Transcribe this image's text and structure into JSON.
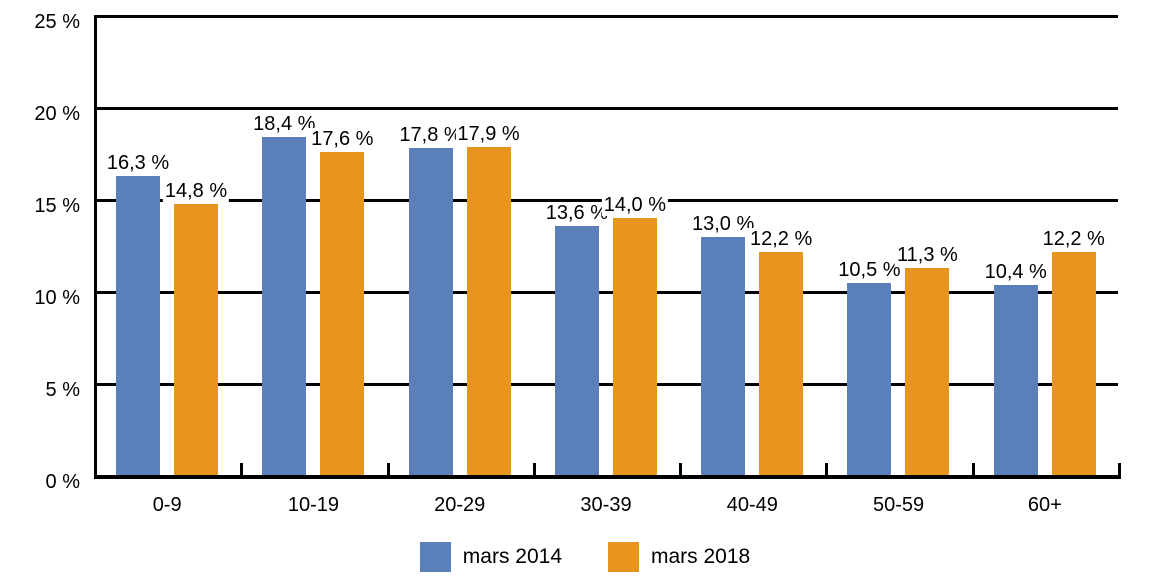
{
  "chart_data": {
    "type": "bar",
    "title": "",
    "xlabel": "",
    "ylabel": "",
    "categories": [
      "0-9",
      "10-19",
      "20-29",
      "30-39",
      "40-49",
      "50-59",
      "60+"
    ],
    "series": [
      {
        "name": "mars 2014",
        "color": "#5B7FB9",
        "values": [
          16.3,
          18.4,
          17.8,
          13.6,
          13.0,
          10.5,
          10.4
        ],
        "value_labels": [
          "16,3 %",
          "18,4 %",
          "17,8 %",
          "13,6 %",
          "13,0 %",
          "10,5 %",
          "10,4 %"
        ]
      },
      {
        "name": "mars 2018",
        "color": "#E8951F",
        "values": [
          14.8,
          17.6,
          17.9,
          14.0,
          12.2,
          11.3,
          12.2
        ],
        "value_labels": [
          "14,8 %",
          "17,6 %",
          "17,9 %",
          "14,0 %",
          "12,2 %",
          "11,3 %",
          "12,2 %"
        ]
      }
    ],
    "y_axis": {
      "min": 0,
      "max": 25,
      "ticks": [
        0,
        5,
        10,
        15,
        20,
        25
      ],
      "tick_labels": [
        "0 %",
        "5 %",
        "10 %",
        "15 %",
        "20 %",
        "25 %"
      ]
    },
    "grid": true,
    "gridline_color": "#000000",
    "legend_position": "bottom"
  }
}
